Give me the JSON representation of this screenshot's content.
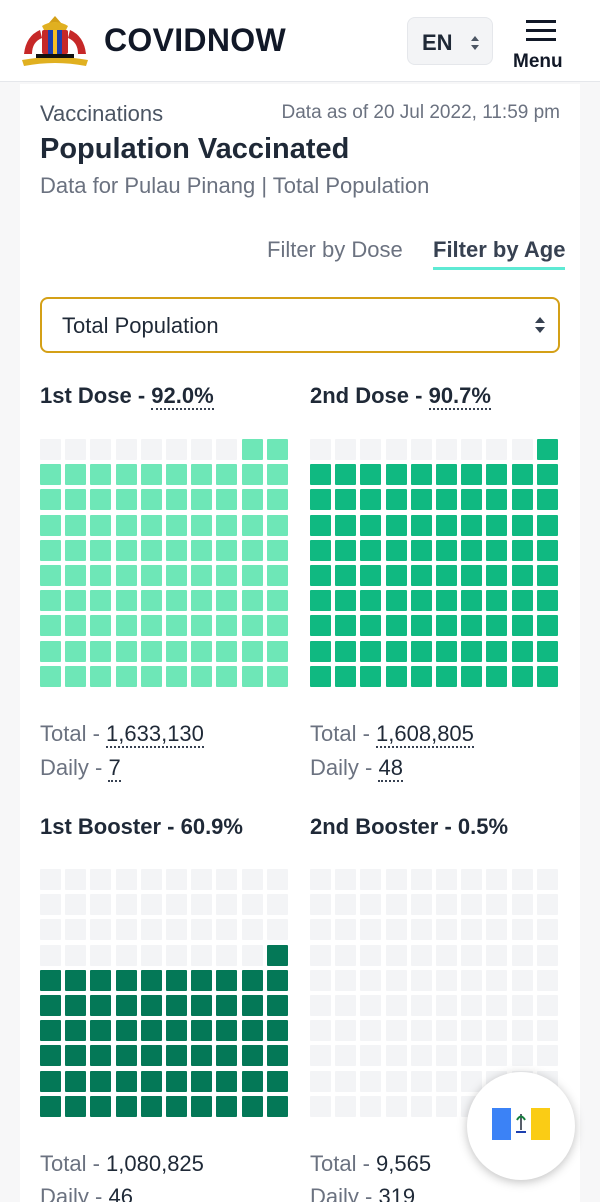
{
  "nav": {
    "brand": "COVIDNOW",
    "language": "EN",
    "menu_label": "Menu"
  },
  "header": {
    "section": "Vaccinations",
    "data_as_of": "Data as of 20 Jul 2022, 11:59 pm",
    "title": "Population Vaccinated",
    "subtitle": "Data for Pulau Pinang | Total Population"
  },
  "filters": {
    "dose_label": "Filter by Dose",
    "age_label": "Filter by Age",
    "active": "Filter by Age"
  },
  "select": {
    "value": "Total Population"
  },
  "doses": [
    {
      "label": "1st Dose - ",
      "pct_text": "92.0%",
      "pct": 92.0,
      "total_label": "Total - ",
      "total": "1,633,130",
      "daily_label": "Daily - ",
      "daily": "7",
      "color": "#6ee7b7"
    },
    {
      "label": "2nd Dose - ",
      "pct_text": "90.7%",
      "pct": 90.7,
      "total_label": "Total - ",
      "total": "1,608,805",
      "daily_label": "Daily - ",
      "daily": "48",
      "color": "#10b981"
    },
    {
      "label": "1st Booster - ",
      "pct_text": "60.9%",
      "pct": 60.9,
      "total_label": "Total - ",
      "total": "1,080,825",
      "daily_label": "Daily - ",
      "daily": "46",
      "color": "#047857"
    },
    {
      "label": "2nd Booster - ",
      "pct_text": "0.5%",
      "pct": 0.5,
      "total_label": "Total - ",
      "total": "9,565",
      "daily_label": "Daily - ",
      "daily": "319",
      "color": "#065f46"
    }
  ],
  "empty_cell_color": "#f3f4f6",
  "icons": {
    "logo": "malaysia-coat-of-arms",
    "flag": "pulau-pinang-flag"
  }
}
